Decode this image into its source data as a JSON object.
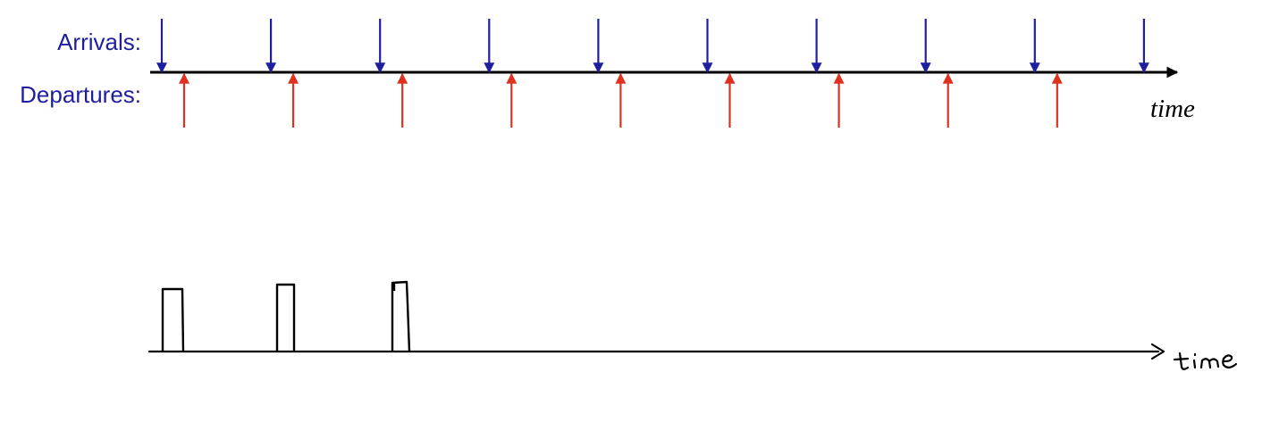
{
  "labels": {
    "arrivals": "Arrivals:",
    "departures": "Departures:",
    "time_top": "time",
    "time_bottom": "time"
  },
  "colors": {
    "arrivals": "#1f1f9e",
    "departures": "#e0301e",
    "axis": "#000000"
  },
  "timeline": {
    "arrival_count": 10,
    "departure_count": 9
  },
  "busy_periods": {
    "count": 3,
    "style": "hand-drawn"
  }
}
